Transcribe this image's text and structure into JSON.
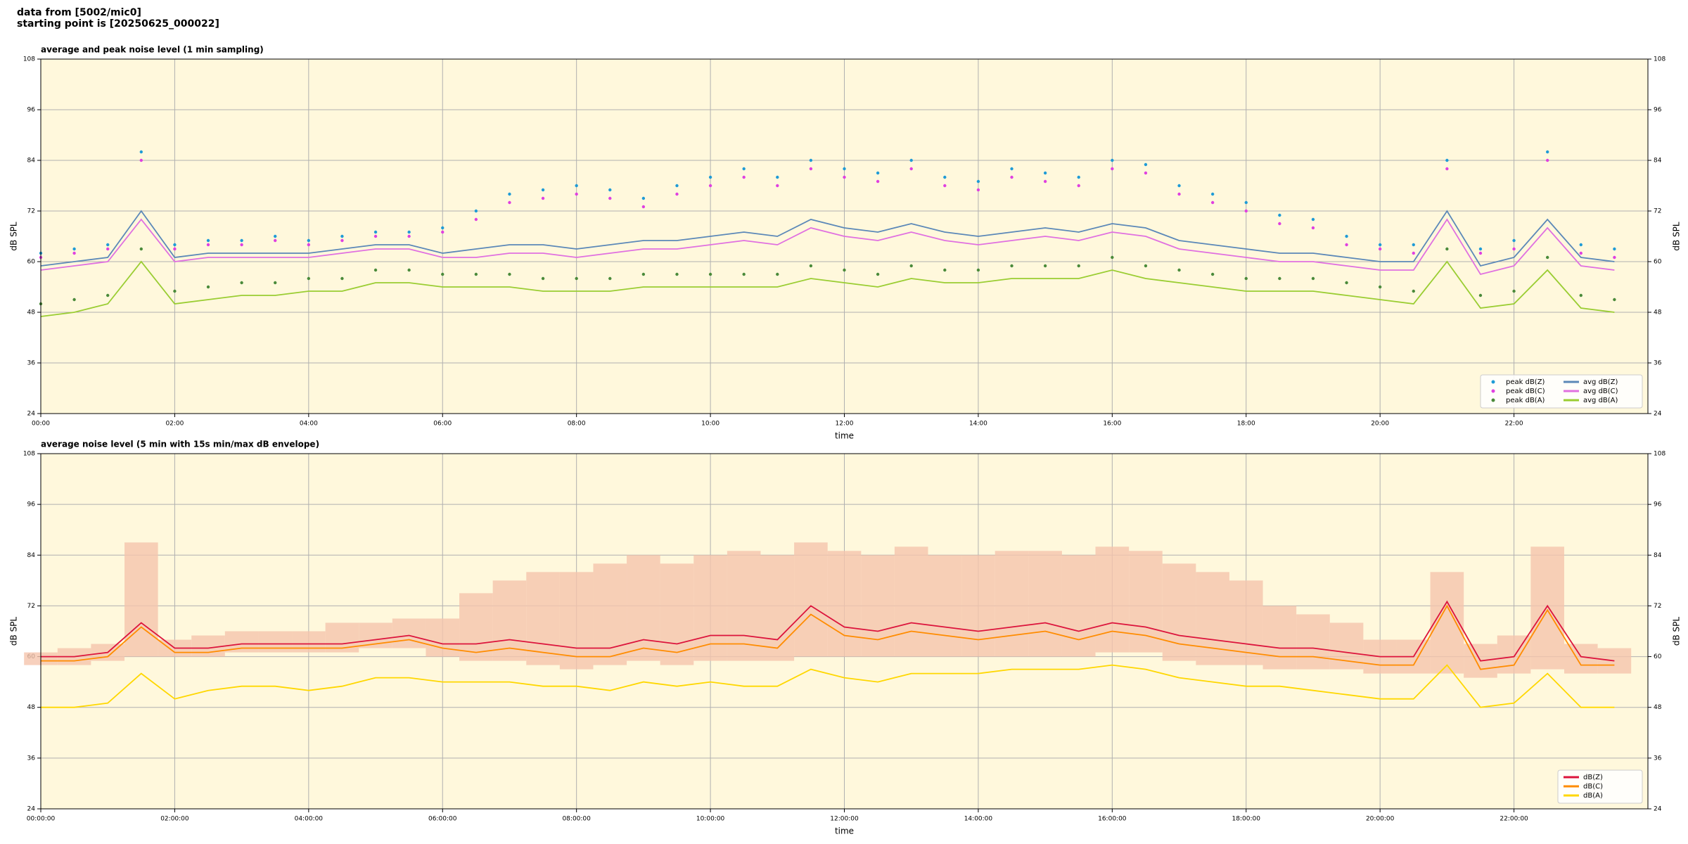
{
  "header": {
    "lines": [
      "data from [5002/mic0]",
      "starting point is [20250625_000022]"
    ]
  },
  "chart_data": [
    {
      "type": "line",
      "title": "average and peak noise level (1 min sampling)",
      "xlabel": "time",
      "ylabel": "dB SPL",
      "x": [
        0,
        0.5,
        1,
        1.5,
        2,
        2.5,
        3,
        3.5,
        4,
        4.5,
        5,
        5.5,
        6,
        6.5,
        7,
        7.5,
        8,
        8.5,
        9,
        9.5,
        10,
        10.5,
        11,
        11.5,
        12,
        12.5,
        13,
        13.5,
        14,
        14.5,
        15,
        15.5,
        16,
        16.5,
        17,
        17.5,
        18,
        18.5,
        19,
        19.5,
        20,
        20.5,
        21,
        21.5,
        22,
        22.5,
        23,
        23.5
      ],
      "xlim": [
        0,
        24
      ],
      "xticks": [
        {
          "value": 0,
          "label": "00:00"
        },
        {
          "value": 2,
          "label": "02:00"
        },
        {
          "value": 4,
          "label": "04:00"
        },
        {
          "value": 6,
          "label": "06:00"
        },
        {
          "value": 8,
          "label": "08:00"
        },
        {
          "value": 10,
          "label": "10:00"
        },
        {
          "value": 12,
          "label": "12:00"
        },
        {
          "value": 14,
          "label": "14:00"
        },
        {
          "value": 16,
          "label": "16:00"
        },
        {
          "value": 18,
          "label": "18:00"
        },
        {
          "value": 20,
          "label": "20:00"
        },
        {
          "value": 22,
          "label": "22:00"
        }
      ],
      "ylim": [
        24,
        108
      ],
      "yticks": [
        24,
        36,
        48,
        60,
        72,
        84,
        96,
        108
      ],
      "grid": true,
      "background": "#fff8dc",
      "legend": "lower right",
      "series": [
        {
          "name": "peak dB(Z)",
          "mark": "scatter",
          "color": "#1f9bd6",
          "values": [
            62,
            63,
            64,
            86,
            64,
            65,
            65,
            66,
            65,
            66,
            67,
            67,
            68,
            72,
            76,
            77,
            78,
            77,
            75,
            78,
            80,
            82,
            80,
            84,
            82,
            81,
            84,
            80,
            79,
            82,
            81,
            80,
            84,
            83,
            78,
            76,
            74,
            71,
            70,
            66,
            64,
            64,
            84,
            63,
            65,
            86,
            64,
            63
          ]
        },
        {
          "name": "peak dB(C)",
          "mark": "scatter",
          "color": "#e040e0",
          "values": [
            61,
            62,
            63,
            84,
            63,
            64,
            64,
            65,
            64,
            65,
            66,
            66,
            67,
            70,
            74,
            75,
            76,
            75,
            73,
            76,
            78,
            80,
            78,
            82,
            80,
            79,
            82,
            78,
            77,
            80,
            79,
            78,
            82,
            81,
            76,
            74,
            72,
            69,
            68,
            64,
            63,
            62,
            82,
            62,
            63,
            84,
            62,
            61
          ]
        },
        {
          "name": "peak dB(A)",
          "mark": "scatter",
          "color": "#4a8a3a",
          "values": [
            50,
            51,
            52,
            63,
            53,
            54,
            55,
            55,
            56,
            56,
            58,
            58,
            57,
            57,
            57,
            56,
            56,
            56,
            57,
            57,
            57,
            57,
            57,
            59,
            58,
            57,
            59,
            58,
            58,
            59,
            59,
            59,
            61,
            59,
            58,
            57,
            56,
            56,
            56,
            55,
            54,
            53,
            63,
            52,
            53,
            61,
            52,
            51
          ]
        },
        {
          "name": "avg dB(Z)",
          "mark": "line",
          "color": "#5b88b8",
          "values": [
            59,
            60,
            61,
            72,
            61,
            62,
            62,
            62,
            62,
            63,
            64,
            64,
            62,
            63,
            64,
            64,
            63,
            64,
            65,
            65,
            66,
            67,
            66,
            70,
            68,
            67,
            69,
            67,
            66,
            67,
            68,
            67,
            69,
            68,
            65,
            64,
            63,
            62,
            62,
            61,
            60,
            60,
            72,
            59,
            61,
            70,
            61,
            60
          ]
        },
        {
          "name": "avg dB(C)",
          "mark": "line",
          "color": "#e070e0",
          "values": [
            58,
            59,
            60,
            70,
            60,
            61,
            61,
            61,
            61,
            62,
            63,
            63,
            61,
            61,
            62,
            62,
            61,
            62,
            63,
            63,
            64,
            65,
            64,
            68,
            66,
            65,
            67,
            65,
            64,
            65,
            66,
            65,
            67,
            66,
            63,
            62,
            61,
            60,
            60,
            59,
            58,
            58,
            70,
            57,
            59,
            68,
            59,
            58
          ]
        },
        {
          "name": "avg dB(A)",
          "mark": "line",
          "color": "#9acd32",
          "values": [
            47,
            48,
            50,
            60,
            50,
            51,
            52,
            52,
            53,
            53,
            55,
            55,
            54,
            54,
            54,
            53,
            53,
            53,
            54,
            54,
            54,
            54,
            54,
            56,
            55,
            54,
            56,
            55,
            55,
            56,
            56,
            56,
            58,
            56,
            55,
            54,
            53,
            53,
            53,
            52,
            51,
            50,
            60,
            49,
            50,
            58,
            49,
            48
          ]
        }
      ]
    },
    {
      "type": "line",
      "title": "average noise level (5 min with 15s min/max dB envelope)",
      "xlabel": "time",
      "ylabel": "dB SPL",
      "x": [
        0,
        0.5,
        1,
        1.5,
        2,
        2.5,
        3,
        3.5,
        4,
        4.5,
        5,
        5.5,
        6,
        6.5,
        7,
        7.5,
        8,
        8.5,
        9,
        9.5,
        10,
        10.5,
        11,
        11.5,
        12,
        12.5,
        13,
        13.5,
        14,
        14.5,
        15,
        15.5,
        16,
        16.5,
        17,
        17.5,
        18,
        18.5,
        19,
        19.5,
        20,
        20.5,
        21,
        21.5,
        22,
        22.5,
        23,
        23.5
      ],
      "xlim": [
        0,
        24
      ],
      "xticks": [
        {
          "value": 0,
          "label": "00:00:00"
        },
        {
          "value": 2,
          "label": "02:00:00"
        },
        {
          "value": 4,
          "label": "04:00:00"
        },
        {
          "value": 6,
          "label": "06:00:00"
        },
        {
          "value": 8,
          "label": "08:00:00"
        },
        {
          "value": 10,
          "label": "10:00:00"
        },
        {
          "value": 12,
          "label": "12:00:00"
        },
        {
          "value": 14,
          "label": "14:00:00"
        },
        {
          "value": 16,
          "label": "16:00:00"
        },
        {
          "value": 18,
          "label": "18:00:00"
        },
        {
          "value": 20,
          "label": "20:00:00"
        },
        {
          "value": 22,
          "label": "22:00:00"
        }
      ],
      "ylim": [
        24,
        108
      ],
      "yticks": [
        24,
        36,
        48,
        60,
        72,
        84,
        96,
        108
      ],
      "grid": true,
      "background": "#fff8dc",
      "legend": "lower right",
      "envelope": {
        "color": "#f5c4ac",
        "min": [
          58,
          58,
          59,
          60,
          60,
          60,
          61,
          61,
          61,
          61,
          62,
          62,
          60,
          59,
          59,
          58,
          57,
          58,
          59,
          58,
          59,
          59,
          59,
          60,
          60,
          60,
          60,
          60,
          60,
          60,
          60,
          60,
          61,
          61,
          59,
          58,
          58,
          57,
          57,
          57,
          56,
          56,
          56,
          55,
          56,
          57,
          56,
          56
        ],
        "max": [
          61,
          62,
          63,
          87,
          64,
          65,
          66,
          66,
          66,
          68,
          68,
          69,
          69,
          75,
          78,
          80,
          80,
          82,
          84,
          82,
          84,
          85,
          84,
          87,
          85,
          84,
          86,
          84,
          84,
          85,
          85,
          84,
          86,
          85,
          82,
          80,
          78,
          72,
          70,
          68,
          64,
          64,
          80,
          63,
          65,
          86,
          63,
          62
        ]
      },
      "series": [
        {
          "name": "dB(Z)",
          "mark": "line",
          "color": "#dc143c",
          "values": [
            60,
            60,
            61,
            68,
            62,
            62,
            63,
            63,
            63,
            63,
            64,
            65,
            63,
            63,
            64,
            63,
            62,
            62,
            64,
            63,
            65,
            65,
            64,
            72,
            67,
            66,
            68,
            67,
            66,
            67,
            68,
            66,
            68,
            67,
            65,
            64,
            63,
            62,
            62,
            61,
            60,
            60,
            73,
            59,
            60,
            72,
            60,
            59
          ]
        },
        {
          "name": "dB(C)",
          "mark": "line",
          "color": "#ff8c00",
          "values": [
            59,
            59,
            60,
            67,
            61,
            61,
            62,
            62,
            62,
            62,
            63,
            64,
            62,
            61,
            62,
            61,
            60,
            60,
            62,
            61,
            63,
            63,
            62,
            70,
            65,
            64,
            66,
            65,
            64,
            65,
            66,
            64,
            66,
            65,
            63,
            62,
            61,
            60,
            60,
            59,
            58,
            58,
            72,
            57,
            58,
            71,
            58,
            58
          ]
        },
        {
          "name": "dB(A)",
          "mark": "line",
          "color": "#ffd700",
          "values": [
            48,
            48,
            49,
            56,
            50,
            52,
            53,
            53,
            52,
            53,
            55,
            55,
            54,
            54,
            54,
            53,
            53,
            52,
            54,
            53,
            54,
            53,
            53,
            57,
            55,
            54,
            56,
            56,
            56,
            57,
            57,
            57,
            58,
            57,
            55,
            54,
            53,
            53,
            52,
            51,
            50,
            50,
            58,
            48,
            49,
            56,
            48,
            48
          ]
        }
      ]
    }
  ]
}
